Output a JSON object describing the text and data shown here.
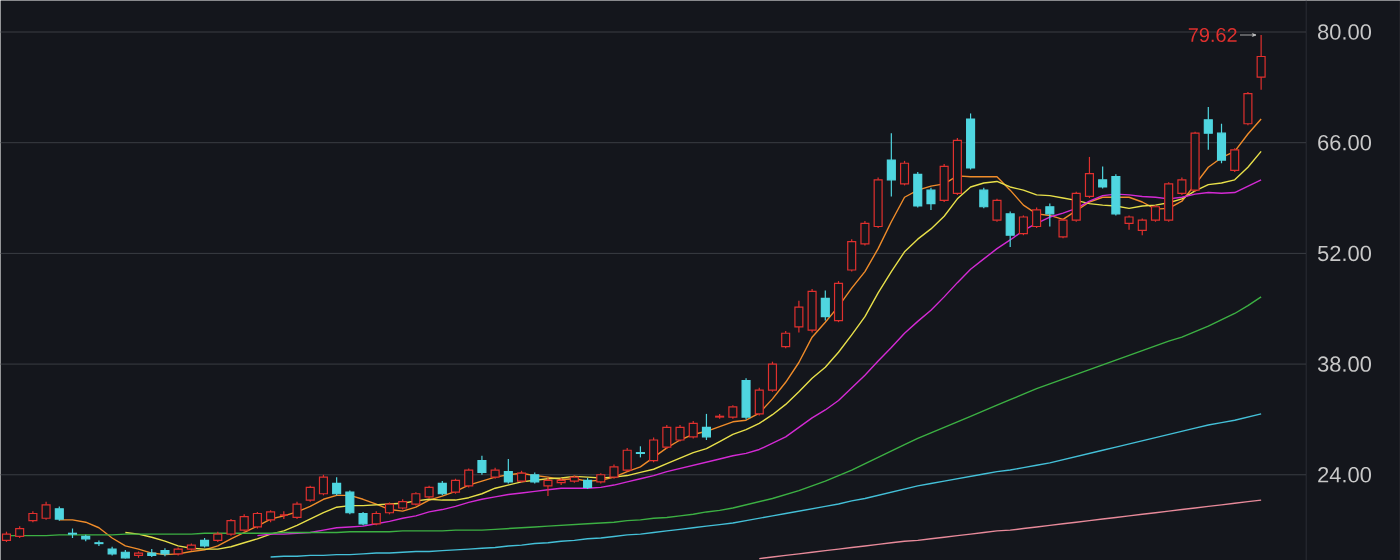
{
  "chart_data": {
    "type": "candlestick",
    "categories": [
      null,
      null,
      null,
      null,
      null,
      null,
      null,
      null,
      null,
      null,
      null,
      null,
      null,
      null,
      null,
      null,
      null,
      null,
      null,
      null,
      null,
      null,
      null,
      null,
      null,
      null,
      null,
      null,
      null,
      null,
      null,
      null,
      null,
      null,
      null,
      null,
      null,
      null,
      null,
      null,
      null,
      null,
      null,
      null,
      null,
      null,
      null,
      null,
      null,
      null,
      null,
      null,
      null,
      null,
      null,
      null,
      null,
      null,
      null,
      null,
      null,
      null,
      null,
      null,
      null,
      null,
      null,
      null,
      null,
      null,
      null,
      null,
      null,
      null,
      null,
      null,
      null,
      null,
      null,
      null,
      null,
      null,
      null,
      null,
      null,
      null,
      null,
      null,
      null,
      null,
      null,
      null,
      null,
      null,
      null,
      null
    ],
    "ohlc": [
      [
        15.7,
        16.8,
        15.5,
        16.5
      ],
      [
        16.2,
        17.5,
        16.0,
        17.2
      ],
      [
        18.2,
        19.4,
        18.0,
        19.1
      ],
      [
        18.5,
        20.6,
        18.3,
        20.2
      ],
      [
        19.7,
        20.0,
        18.2,
        18.4
      ],
      [
        16.6,
        17.2,
        16.0,
        16.5
      ],
      [
        16.2,
        16.4,
        15.6,
        15.9
      ],
      [
        15.4,
        15.7,
        15.0,
        15.3
      ],
      [
        14.6,
        14.9,
        13.8,
        14.0
      ],
      [
        14.2,
        14.5,
        13.4,
        13.5
      ],
      [
        13.8,
        14.3,
        13.5,
        14.1
      ],
      [
        14.1,
        14.6,
        13.6,
        13.8
      ],
      [
        14.4,
        14.7,
        13.7,
        14.0
      ],
      [
        14.0,
        14.8,
        13.8,
        14.6
      ],
      [
        14.6,
        15.3,
        14.4,
        15.1
      ],
      [
        15.7,
        16.0,
        14.8,
        15.0
      ],
      [
        15.7,
        16.8,
        15.5,
        16.5
      ],
      [
        16.5,
        18.4,
        16.3,
        18.2
      ],
      [
        17.0,
        19.0,
        16.8,
        18.7
      ],
      [
        17.4,
        19.3,
        17.2,
        19.1
      ],
      [
        18.3,
        19.5,
        18.0,
        19.3
      ],
      [
        18.9,
        19.4,
        18.4,
        18.9
      ],
      [
        18.6,
        20.6,
        18.4,
        20.3
      ],
      [
        20.8,
        22.6,
        20.6,
        22.4
      ],
      [
        21.6,
        24.0,
        21.4,
        23.7
      ],
      [
        22.9,
        23.7,
        21.4,
        21.6
      ],
      [
        21.8,
        22.0,
        19.0,
        19.2
      ],
      [
        19.1,
        19.3,
        17.6,
        17.8
      ],
      [
        17.8,
        19.4,
        17.6,
        19.1
      ],
      [
        19.2,
        20.5,
        19.0,
        20.3
      ],
      [
        19.8,
        20.9,
        19.6,
        20.6
      ],
      [
        20.3,
        21.8,
        20.1,
        21.6
      ],
      [
        21.2,
        22.6,
        21.0,
        22.4
      ],
      [
        22.9,
        23.2,
        21.4,
        21.6
      ],
      [
        21.8,
        23.5,
        21.6,
        23.3
      ],
      [
        22.6,
        24.8,
        22.4,
        24.6
      ],
      [
        25.8,
        26.4,
        24.0,
        24.3
      ],
      [
        23.7,
        24.9,
        23.5,
        24.6
      ],
      [
        24.4,
        26.0,
        22.9,
        23.1
      ],
      [
        23.2,
        24.5,
        23.0,
        24.2
      ],
      [
        24.0,
        24.3,
        22.9,
        23.1
      ],
      [
        22.6,
        23.6,
        21.3,
        23.3
      ],
      [
        23.0,
        23.6,
        22.7,
        23.3
      ],
      [
        23.2,
        23.9,
        23.0,
        23.7
      ],
      [
        23.3,
        23.6,
        22.2,
        22.4
      ],
      [
        23.1,
        24.2,
        22.9,
        24.0
      ],
      [
        23.7,
        25.3,
        23.5,
        25.0
      ],
      [
        24.6,
        27.4,
        24.4,
        27.1
      ],
      [
        26.8,
        27.6,
        26.2,
        26.7
      ],
      [
        25.8,
        28.7,
        25.6,
        28.4
      ],
      [
        27.5,
        30.3,
        27.3,
        30.0
      ],
      [
        28.4,
        30.3,
        28.2,
        30.0
      ],
      [
        28.8,
        30.8,
        28.6,
        30.5
      ],
      [
        30.0,
        31.7,
        28.4,
        28.8
      ],
      [
        31.3,
        31.7,
        31.1,
        31.4
      ],
      [
        31.3,
        32.8,
        31.1,
        32.6
      ],
      [
        35.9,
        36.2,
        31.0,
        31.3
      ],
      [
        31.7,
        35.0,
        31.5,
        34.7
      ],
      [
        34.7,
        38.3,
        34.5,
        38.0
      ],
      [
        40.2,
        42.2,
        40.0,
        41.9
      ],
      [
        42.7,
        46.0,
        42.0,
        45.2
      ],
      [
        42.3,
        47.5,
        42.0,
        47.2
      ],
      [
        46.3,
        47.3,
        43.5,
        44.0
      ],
      [
        43.5,
        48.5,
        43.3,
        48.2
      ],
      [
        49.9,
        53.8,
        49.7,
        53.5
      ],
      [
        53.2,
        56.1,
        53.0,
        55.8
      ],
      [
        55.4,
        61.6,
        55.2,
        61.3
      ],
      [
        63.8,
        67.2,
        59.2,
        61.3
      ],
      [
        60.8,
        63.7,
        60.6,
        63.4
      ],
      [
        62.0,
        62.3,
        57.8,
        58.0
      ],
      [
        60.0,
        60.3,
        57.5,
        58.3
      ],
      [
        58.7,
        63.3,
        58.5,
        63.0
      ],
      [
        59.6,
        66.6,
        59.4,
        66.3
      ],
      [
        69.0,
        69.7,
        62.6,
        62.8
      ],
      [
        60.0,
        60.3,
        57.7,
        57.9
      ],
      [
        56.2,
        58.9,
        56.0,
        58.7
      ],
      [
        57.0,
        57.3,
        52.8,
        54.3
      ],
      [
        54.5,
        56.8,
        54.3,
        56.6
      ],
      [
        55.4,
        57.8,
        55.2,
        57.5
      ],
      [
        57.9,
        58.3,
        55.4,
        57.0
      ],
      [
        54.1,
        56.4,
        53.9,
        56.2
      ],
      [
        56.2,
        59.8,
        56.0,
        59.6
      ],
      [
        59.2,
        64.2,
        59.0,
        62.1
      ],
      [
        61.3,
        63.0,
        60.2,
        60.4
      ],
      [
        61.7,
        62.0,
        56.8,
        57.0
      ],
      [
        55.8,
        56.8,
        55.0,
        56.6
      ],
      [
        54.9,
        56.4,
        54.3,
        56.2
      ],
      [
        56.2,
        58.1,
        56.0,
        57.9
      ],
      [
        56.2,
        61.0,
        56.0,
        60.8
      ],
      [
        59.6,
        61.6,
        59.4,
        61.3
      ],
      [
        60.0,
        67.4,
        59.8,
        67.2
      ],
      [
        68.9,
        70.5,
        65.1,
        67.2
      ],
      [
        67.2,
        68.4,
        63.4,
        63.8
      ],
      [
        62.5,
        65.3,
        62.3,
        65.1
      ],
      [
        68.4,
        72.4,
        68.2,
        72.2
      ],
      [
        74.3,
        79.62,
        72.7,
        76.9
      ]
    ],
    "colors": [
      "#e0302e",
      "#e0302e",
      "#e0302e",
      "#e0302e",
      "#4fd6e0",
      "#4fd6e0",
      "#4fd6e0",
      "#4fd6e0",
      "#4fd6e0",
      "#4fd6e0",
      "#e0302e",
      "#4fd6e0",
      "#4fd6e0",
      "#e0302e",
      "#e0302e",
      "#4fd6e0",
      "#e0302e",
      "#e0302e",
      "#e0302e",
      "#e0302e",
      "#e0302e",
      "#e0302e",
      "#e0302e",
      "#e0302e",
      "#e0302e",
      "#4fd6e0",
      "#4fd6e0",
      "#4fd6e0",
      "#e0302e",
      "#e0302e",
      "#e0302e",
      "#e0302e",
      "#e0302e",
      "#4fd6e0",
      "#e0302e",
      "#e0302e",
      "#4fd6e0",
      "#e0302e",
      "#4fd6e0",
      "#e0302e",
      "#4fd6e0",
      "#e0302e",
      "#e0302e",
      "#e0302e",
      "#4fd6e0",
      "#e0302e",
      "#e0302e",
      "#e0302e",
      "#4fd6e0",
      "#e0302e",
      "#e0302e",
      "#e0302e",
      "#e0302e",
      "#4fd6e0",
      "#e0302e",
      "#e0302e",
      "#4fd6e0",
      "#e0302e",
      "#e0302e",
      "#e0302e",
      "#e0302e",
      "#e0302e",
      "#4fd6e0",
      "#e0302e",
      "#e0302e",
      "#e0302e",
      "#e0302e",
      "#4fd6e0",
      "#e0302e",
      "#4fd6e0",
      "#4fd6e0",
      "#e0302e",
      "#e0302e",
      "#4fd6e0",
      "#4fd6e0",
      "#e0302e",
      "#4fd6e0",
      "#e0302e",
      "#e0302e",
      "#4fd6e0",
      "#e0302e",
      "#e0302e",
      "#e0302e",
      "#4fd6e0",
      "#4fd6e0",
      "#e0302e",
      "#e0302e",
      "#e0302e",
      "#e0302e",
      "#e0302e",
      "#e0302e",
      "#4fd6e0",
      "#4fd6e0",
      "#e0302e",
      "#e0302e",
      "#e0302e"
    ],
    "series": [
      {
        "type": "line",
        "color": "#f08c2a",
        "values": [
          null,
          null,
          null,
          null,
          18.3,
          18.3,
          18.0,
          17.3,
          16.0,
          15.0,
          14.6,
          14.1,
          13.9,
          14.0,
          14.3,
          14.5,
          15.0,
          15.9,
          16.7,
          17.5,
          18.4,
          18.8,
          19.3,
          20.0,
          20.9,
          21.4,
          21.4,
          20.9,
          20.3,
          19.6,
          19.4,
          19.9,
          20.8,
          21.3,
          21.9,
          22.7,
          23.2,
          23.7,
          24.0,
          24.2,
          23.9,
          23.7,
          23.4,
          23.5,
          23.2,
          23.3,
          23.7,
          24.4,
          25.0,
          26.2,
          27.4,
          28.4,
          29.1,
          29.5,
          30.1,
          30.7,
          30.9,
          31.8,
          33.6,
          35.7,
          38.2,
          41.4,
          43.3,
          45.3,
          47.6,
          49.7,
          52.6,
          56.0,
          59.1,
          60.0,
          60.5,
          60.8,
          61.8,
          61.7,
          61.7,
          61.7,
          60.0,
          58.1,
          57.0,
          56.8,
          56.3,
          57.4,
          58.5,
          59.1,
          59.1,
          59.1,
          58.5,
          57.6,
          57.7,
          58.6,
          60.7,
          62.9,
          64.1,
          64.9,
          67.1,
          69.0
        ]
      },
      {
        "type": "line",
        "color": "#e8e04a",
        "values": [
          null,
          null,
          null,
          null,
          null,
          null,
          null,
          null,
          null,
          16.7,
          16.5,
          16.1,
          15.6,
          15.0,
          14.7,
          14.6,
          14.6,
          14.9,
          15.4,
          15.9,
          16.5,
          16.9,
          17.6,
          18.4,
          19.2,
          19.9,
          20.1,
          20.1,
          20.2,
          20.3,
          20.4,
          20.7,
          20.9,
          20.8,
          20.8,
          21.1,
          21.6,
          22.3,
          22.7,
          23.1,
          23.3,
          23.5,
          23.6,
          23.8,
          23.7,
          23.6,
          23.7,
          23.9,
          24.3,
          24.7,
          25.4,
          26.1,
          26.8,
          27.3,
          28.2,
          29.1,
          29.7,
          30.5,
          31.6,
          32.9,
          34.5,
          36.2,
          37.6,
          39.5,
          41.7,
          44.0,
          47.0,
          49.7,
          52.2,
          53.8,
          55.1,
          56.7,
          58.9,
          60.4,
          60.9,
          61.1,
          60.4,
          60.0,
          59.4,
          59.3,
          59.0,
          58.7,
          58.3,
          58.1,
          58.0,
          57.7,
          58.0,
          58.1,
          58.4,
          58.9,
          59.9,
          60.7,
          60.9,
          61.3,
          62.9,
          64.9
        ]
      },
      {
        "type": "line",
        "color": "#d42ad4",
        "values": [
          null,
          null,
          null,
          null,
          null,
          null,
          null,
          null,
          null,
          null,
          null,
          null,
          null,
          null,
          null,
          null,
          null,
          null,
          null,
          16.3,
          16.5,
          16.5,
          16.6,
          16.7,
          17.0,
          17.3,
          17.4,
          17.5,
          17.8,
          18.1,
          18.5,
          18.8,
          19.3,
          19.6,
          20.0,
          20.5,
          20.9,
          21.2,
          21.5,
          21.7,
          21.9,
          22.1,
          22.3,
          22.3,
          22.3,
          22.4,
          22.7,
          23.1,
          23.5,
          23.9,
          24.4,
          24.8,
          25.2,
          25.6,
          26.0,
          26.4,
          26.7,
          27.2,
          28.0,
          28.8,
          30.0,
          31.2,
          32.2,
          33.4,
          35.0,
          36.6,
          38.4,
          40.1,
          41.9,
          43.4,
          44.8,
          46.5,
          48.3,
          50.0,
          51.3,
          52.6,
          53.7,
          54.9,
          55.8,
          56.6,
          57.1,
          57.7,
          58.6,
          59.3,
          59.5,
          59.4,
          59.2,
          59.1,
          58.9,
          59.1,
          59.5,
          59.7,
          59.6,
          59.7,
          60.5,
          61.3
        ]
      },
      {
        "type": "line",
        "color": "#3cb043",
        "values": [
          16.3,
          16.3,
          16.3,
          16.3,
          16.4,
          16.4,
          16.4,
          16.4,
          16.4,
          16.5,
          16.5,
          16.5,
          16.5,
          16.5,
          16.5,
          16.6,
          16.6,
          16.6,
          16.6,
          16.6,
          16.6,
          16.7,
          16.7,
          16.7,
          16.7,
          16.7,
          16.8,
          16.8,
          16.8,
          16.8,
          16.9,
          16.9,
          16.9,
          16.9,
          17.0,
          17.0,
          17.0,
          17.1,
          17.2,
          17.3,
          17.4,
          17.5,
          17.6,
          17.7,
          17.8,
          17.9,
          18.0,
          18.2,
          18.3,
          18.5,
          18.6,
          18.8,
          19.0,
          19.3,
          19.5,
          19.8,
          20.2,
          20.6,
          21.0,
          21.5,
          22.0,
          22.6,
          23.2,
          23.9,
          24.6,
          25.4,
          26.2,
          27.0,
          27.8,
          28.6,
          29.3,
          30.0,
          30.7,
          31.4,
          32.1,
          32.8,
          33.5,
          34.2,
          34.9,
          35.5,
          36.1,
          36.7,
          37.3,
          37.9,
          38.5,
          39.1,
          39.7,
          40.3,
          40.9,
          41.4,
          42.1,
          42.8,
          43.6,
          44.4,
          45.4,
          46.5
        ]
      },
      {
        "type": "line",
        "color": "#44c0d8",
        "values": [
          null,
          null,
          null,
          null,
          null,
          null,
          null,
          null,
          null,
          null,
          null,
          null,
          null,
          null,
          null,
          null,
          null,
          null,
          null,
          null,
          13.6,
          13.7,
          13.7,
          13.8,
          13.8,
          13.9,
          13.9,
          14.0,
          14.1,
          14.1,
          14.2,
          14.3,
          14.3,
          14.4,
          14.5,
          14.6,
          14.7,
          14.8,
          15.0,
          15.1,
          15.3,
          15.4,
          15.6,
          15.7,
          15.9,
          16.0,
          16.2,
          16.4,
          16.5,
          16.7,
          16.9,
          17.1,
          17.3,
          17.5,
          17.7,
          17.9,
          18.2,
          18.5,
          18.8,
          19.1,
          19.4,
          19.7,
          20.0,
          20.3,
          20.7,
          21.0,
          21.4,
          21.8,
          22.2,
          22.6,
          22.9,
          23.2,
          23.5,
          23.8,
          24.1,
          24.4,
          24.6,
          24.9,
          25.2,
          25.5,
          25.9,
          26.3,
          26.7,
          27.1,
          27.5,
          27.9,
          28.3,
          28.7,
          29.1,
          29.5,
          29.9,
          30.3,
          30.6,
          30.9,
          31.3,
          31.7
        ]
      },
      {
        "type": "line",
        "color": "#e88a9a",
        "values": [
          null,
          null,
          null,
          null,
          null,
          null,
          null,
          null,
          null,
          null,
          null,
          null,
          null,
          null,
          null,
          null,
          null,
          null,
          null,
          null,
          null,
          null,
          null,
          null,
          null,
          null,
          null,
          null,
          null,
          null,
          null,
          null,
          null,
          null,
          null,
          null,
          null,
          null,
          null,
          null,
          null,
          null,
          null,
          null,
          null,
          null,
          null,
          null,
          null,
          null,
          null,
          null,
          null,
          null,
          null,
          null,
          null,
          13.4,
          13.6,
          13.8,
          14.0,
          14.2,
          14.4,
          14.6,
          14.8,
          15.0,
          15.2,
          15.4,
          15.6,
          15.7,
          15.9,
          16.1,
          16.3,
          16.5,
          16.7,
          16.9,
          17.0,
          17.2,
          17.4,
          17.6,
          17.8,
          18.0,
          18.2,
          18.4,
          18.6,
          18.8,
          19.0,
          19.2,
          19.4,
          19.6,
          19.8,
          20.0,
          20.2,
          20.4,
          20.6,
          20.8
        ]
      }
    ],
    "ylim": [
      13.2,
      84
    ],
    "yticks": [
      {
        "value": 24,
        "label": "24.00"
      },
      {
        "value": 38,
        "label": "38.00"
      },
      {
        "value": 52,
        "label": "52.00"
      },
      {
        "value": 66,
        "label": "66.00"
      },
      {
        "value": 80,
        "label": "80.00"
      }
    ],
    "tick_labels": "y",
    "grid": "y",
    "line_style": "solid",
    "marker": "none",
    "annotations": [
      "79.62"
    ]
  }
}
